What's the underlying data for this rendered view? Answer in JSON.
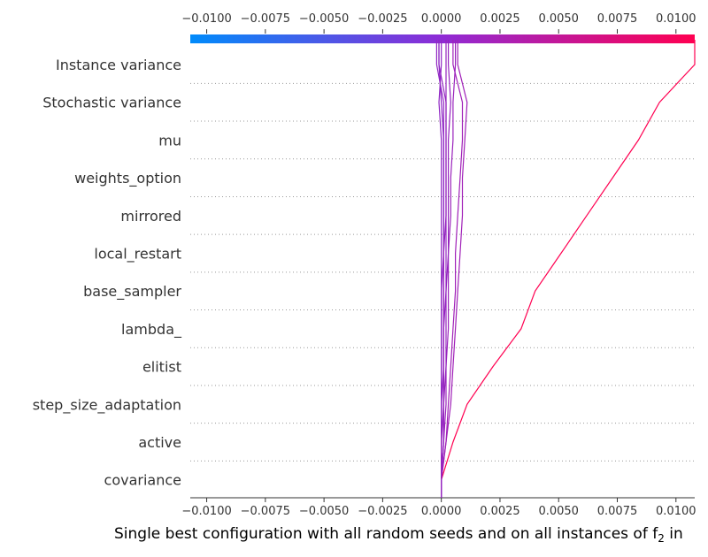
{
  "chart_data": {
    "type": "line",
    "subtype": "shap-decision-plot",
    "xlabel": "Single best configuration with all random seeds and on all instances of f",
    "xlabel_sub": "2",
    "xlabel_tail": " in",
    "xlim": [
      -0.0107,
      0.0108
    ],
    "x_ticks": [
      -0.01,
      -0.0075,
      -0.005,
      -0.0025,
      0.0,
      0.0025,
      0.005,
      0.0075,
      0.01
    ],
    "x_tick_labels": [
      "−0.0100",
      "−0.0075",
      "−0.0050",
      "−0.0025",
      "0.0000",
      "0.0025",
      "0.0050",
      "0.0075",
      "0.0100"
    ],
    "features": [
      "Instance variance",
      "Stochastic variance",
      "mu",
      "weights_option",
      "mirrored",
      "local_restart",
      "base_sampler",
      "lambda_",
      "elitist",
      "step_size_adaptation",
      "active",
      "covariance"
    ],
    "colorbar": {
      "from": "#008bfb",
      "mid": "#8f2bd5",
      "to": "#ff0051"
    },
    "grid": "dotted-horizontal",
    "series": [
      {
        "color": "#ff0051",
        "values": [
          0.0108,
          0.0093,
          0.0084,
          0.0073,
          0.0062,
          0.0051,
          0.004,
          0.0034,
          0.0022,
          0.0011,
          0.0005,
          0.0
        ]
      },
      {
        "color": "#a020b8",
        "values": [
          0.0007,
          0.0011,
          0.001,
          0.0009,
          0.0009,
          0.0008,
          0.0007,
          0.0006,
          0.0005,
          0.0004,
          0.0002,
          0.0
        ]
      },
      {
        "color": "#a020b8",
        "values": [
          0.0005,
          0.0009,
          0.0009,
          0.0008,
          0.0007,
          0.0006,
          0.0006,
          0.0005,
          0.0004,
          0.0003,
          0.0002,
          0.0
        ]
      },
      {
        "color": "#9a22bc",
        "values": [
          0.0006,
          0.0005,
          0.0005,
          0.0004,
          0.0004,
          0.0003,
          0.0003,
          0.0003,
          0.0002,
          0.0002,
          0.0001,
          0.0
        ]
      },
      {
        "color": "#9423bf",
        "values": [
          0.0003,
          0.0004,
          0.0003,
          0.0003,
          0.0003,
          0.0003,
          0.0002,
          0.0002,
          0.0002,
          0.0001,
          0.0001,
          0.0
        ]
      },
      {
        "color": "#9325c1",
        "values": [
          -0.0001,
          0.0002,
          0.0002,
          0.0002,
          0.0002,
          0.0002,
          0.0002,
          0.0001,
          0.0001,
          0.0001,
          0.0001,
          0.0
        ]
      },
      {
        "color": "#9126c3",
        "values": [
          -0.0002,
          0.0001,
          0.0001,
          0.0001,
          0.0001,
          0.0001,
          0.0001,
          0.0001,
          0.0001,
          0.0,
          0.0,
          0.0
        ]
      },
      {
        "color": "#8f28c5",
        "values": [
          -0.0001,
          0.0,
          0.0001,
          0.0001,
          0.0001,
          0.0001,
          0.0,
          0.0,
          0.0,
          0.0,
          0.0,
          0.0
        ]
      },
      {
        "color": "#9027c4",
        "values": [
          0.0,
          -0.0001,
          0.0,
          0.0,
          0.0,
          0.0,
          0.0,
          0.0,
          0.0,
          0.0,
          0.0,
          0.0
        ]
      },
      {
        "color": "#9624be",
        "values": [
          0.0002,
          0.0002,
          0.0002,
          0.0002,
          0.0002,
          0.0001,
          0.0001,
          0.0001,
          0.0001,
          0.0001,
          0.0,
          0.0
        ]
      }
    ]
  }
}
